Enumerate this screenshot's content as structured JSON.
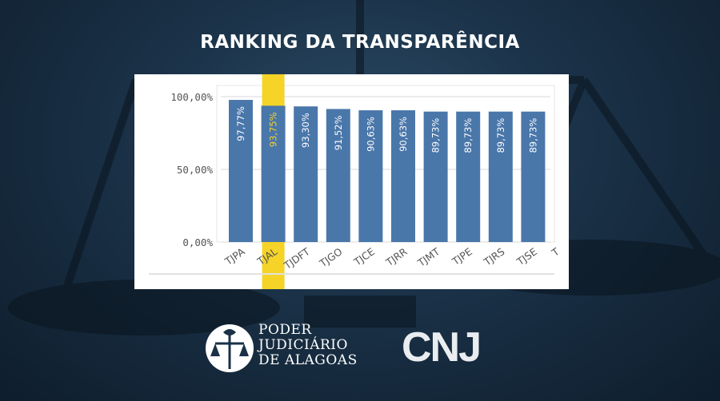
{
  "title": "RANKING DA TRANSPARÊNCIA",
  "highlight_color": "#f5d327",
  "bar_color": "#4a77aa",
  "highlight_label_color": "#f5d327",
  "chart_data": {
    "type": "bar",
    "categories": [
      "TJPA",
      "TJAL",
      "TJDFT",
      "TJGO",
      "TJCE",
      "TJRR",
      "TJMT",
      "TJPE",
      "TJRS",
      "TJSE"
    ],
    "values": [
      97.77,
      93.75,
      93.3,
      91.52,
      90.63,
      90.63,
      89.73,
      89.73,
      89.73,
      89.73
    ],
    "value_labels": [
      "97,77%",
      "93,75%",
      "93,30%",
      "91,52%",
      "90,63%",
      "90,63%",
      "89,73%",
      "89,73%",
      "89,73%",
      "89,73%"
    ],
    "yticks": [
      0,
      50,
      100
    ],
    "ytick_labels": [
      "0,00%",
      "50,00%",
      "100,00%"
    ],
    "ylim": [
      0,
      100
    ],
    "highlighted_category": "TJAL",
    "truncated_next_label": "T"
  },
  "logos": {
    "pj_lines": [
      "PODER",
      "JUDICIÁRIO",
      "DE ALAGOAS"
    ],
    "cnj": "CNJ"
  }
}
